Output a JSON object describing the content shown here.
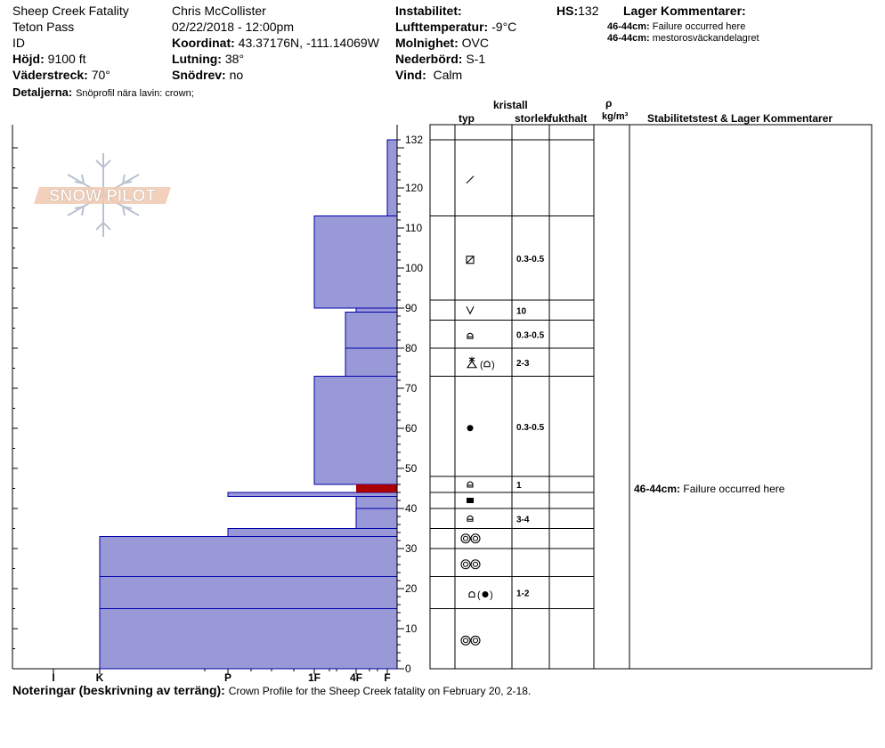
{
  "header": {
    "site": "Sheep Creek Fatality",
    "area": "Teton Pass",
    "state": "ID",
    "elevation_label": "Höjd:",
    "elevation": "9100 ft",
    "aspect_label": "Väderstreck:",
    "aspect": "70°",
    "details_label": "Detaljerna:",
    "details": "Snöprofil nära lavin: crown;",
    "observer": "Chris McCollister",
    "datetime": "02/22/2018 - 12:00pm",
    "coord_label": "Koordinat:",
    "coord": "43.37176N, -111.14069W",
    "slope_label": "Lutning:",
    "slope": "38°",
    "drift_label": "Snödrev:",
    "drift": "no",
    "instability_label": "Instabilitet:",
    "airtemp_label": "Lufttemperatur:",
    "airtemp": "-9°C",
    "sky_label": "Molnighet:",
    "sky": "OVC",
    "precip_label": "Nederbörd:",
    "precip": "S-1",
    "wind_label": "Vind:",
    "wind": "Calm",
    "hs_label": "HS:",
    "hs": "132",
    "layer_comments_label": "Lager Kommentarer:",
    "layer_comments": [
      {
        "depth": "46-44cm:",
        "text": "Failure occurred here"
      },
      {
        "depth": "46-44cm:",
        "text": "mestorosväckandelagret"
      }
    ]
  },
  "logo_text": "SNOW PILOT",
  "table_headers": {
    "kristall": "kristall",
    "typ": "typ",
    "storlek": "storlek",
    "fukthalt": "fukthalt",
    "rho": "ρ",
    "density_unit": "kg/m³",
    "stability": "Stabilitetstest & Lager Kommentarer"
  },
  "stability_comment": {
    "depth": "46-44cm:",
    "text": "Failure occurred here"
  },
  "footer": {
    "label": "Noteringar (beskrivning av terräng):",
    "text": "Crown Profile for the Sheep Creek fatality on February 20, 2-18."
  },
  "chart_data": {
    "type": "bar",
    "ylabel": "",
    "ylim": [
      0,
      132
    ],
    "y_ticks": [
      0,
      10,
      20,
      30,
      40,
      50,
      60,
      70,
      80,
      90,
      100,
      110,
      120,
      132
    ],
    "hardness_ticks": [
      "I",
      "K",
      "P",
      "1F",
      "4F",
      "F"
    ],
    "colors": {
      "layer_fill": "#9999d8",
      "layer_edge": "#0000aa",
      "failure": "#aa0000"
    },
    "layers": [
      {
        "bottom": 0,
        "top": 15,
        "hardness": "K"
      },
      {
        "bottom": 15,
        "top": 23,
        "hardness": "K-"
      },
      {
        "bottom": 23,
        "top": 33,
        "hardness": "K"
      },
      {
        "bottom": 33,
        "top": 35,
        "hardness": "P"
      },
      {
        "bottom": 35,
        "top": 40,
        "hardness": "4F"
      },
      {
        "bottom": 40,
        "top": 43,
        "hardness": "4F"
      },
      {
        "bottom": 43,
        "top": 44,
        "hardness": "P"
      },
      {
        "bottom": 44,
        "top": 46,
        "hardness": "F"
      },
      {
        "bottom": 46,
        "top": 73,
        "hardness": "1F"
      },
      {
        "bottom": 73,
        "top": 80,
        "hardness": "1F+"
      },
      {
        "bottom": 80,
        "top": 89,
        "hardness": "1F+"
      },
      {
        "bottom": 89,
        "top": 90,
        "hardness": "4F"
      },
      {
        "bottom": 90,
        "top": 113,
        "hardness": "1F"
      },
      {
        "bottom": 113,
        "top": 132,
        "hardness": "F"
      }
    ],
    "failure_layer": {
      "bottom": 44,
      "top": 46
    },
    "crystal_rows": [
      {
        "bottom": 0,
        "top": 15,
        "grain": "rounded-pair-icon",
        "size": ""
      },
      {
        "bottom": 15,
        "top": 23,
        "grain": "faceted-and-round-icon",
        "size": "1-2"
      },
      {
        "bottom": 23,
        "top": 30,
        "grain": "rounded-pair-icon",
        "size": ""
      },
      {
        "bottom": 30,
        "top": 35,
        "grain": "rounded-pair-icon",
        "size": ""
      },
      {
        "bottom": 35,
        "top": 40,
        "grain": "faceted-icon",
        "size": "3-4"
      },
      {
        "bottom": 40,
        "top": 44,
        "grain": "crust-icon",
        "size": ""
      },
      {
        "bottom": 44,
        "top": 48,
        "grain": "faceted-icon",
        "size": "1"
      },
      {
        "bottom": 48,
        "top": 73,
        "grain": "round-icon",
        "size": "0.3-0.5"
      },
      {
        "bottom": 73,
        "top": 80,
        "grain": "surface-hoar-faceted-icon",
        "size": "2-3"
      },
      {
        "bottom": 80,
        "top": 87,
        "grain": "faceted-icon",
        "size": "0.3-0.5"
      },
      {
        "bottom": 87,
        "top": 92,
        "grain": "hoar-icon",
        "size": "10"
      },
      {
        "bottom": 92,
        "top": 113,
        "grain": "mixed-form-icon",
        "size": "0.3-0.5"
      },
      {
        "bottom": 113,
        "top": 132,
        "grain": "fragment-icon",
        "size": ""
      }
    ]
  }
}
